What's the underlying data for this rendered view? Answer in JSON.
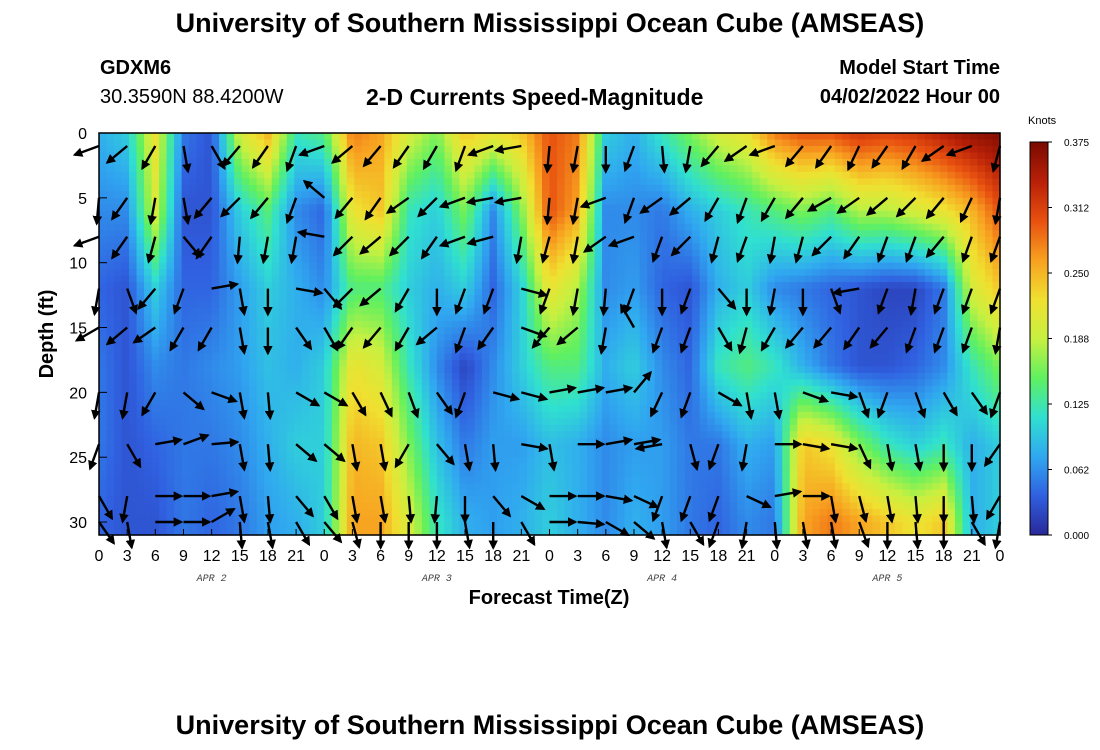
{
  "header": {
    "title": "University of Southern Mississippi Ocean Cube (AMSEAS)",
    "station_id": "GDXM6",
    "coords": "30.3590N  88.4200W",
    "plot_title": "2-D Currents Speed-Magnitude",
    "start_label": "Model Start Time",
    "start_value": "04/02/2022 Hour 00"
  },
  "footer": {
    "title": "University of Southern Mississippi Ocean Cube (AMSEAS)"
  },
  "chart_data": {
    "type": "heatmap",
    "title": "2-D Currents Speed-Magnitude",
    "xlabel": "Forecast Time(Z)",
    "ylabel": "Depth (ft)",
    "xlim": [
      0,
      96
    ],
    "ylim": [
      0,
      31
    ],
    "x_tick_labels": [
      "0",
      "3",
      "6",
      "9",
      "12",
      "15",
      "18",
      "21",
      "0",
      "3",
      "6",
      "9",
      "12",
      "15",
      "18",
      "21",
      "0",
      "3",
      "6",
      "9",
      "12",
      "15",
      "18",
      "21",
      "0",
      "3",
      "6",
      "9",
      "12",
      "15",
      "18",
      "21",
      "0"
    ],
    "y_ticks": [
      0,
      5,
      10,
      15,
      20,
      25,
      30
    ],
    "date_labels": [
      {
        "label": "APR 2",
        "hour": 12
      },
      {
        "label": "APR 3",
        "hour": 36
      },
      {
        "label": "APR 4",
        "hour": 60
      },
      {
        "label": "APR 5",
        "hour": 84
      }
    ],
    "colorbar": {
      "unit": "Knots",
      "ticks": [
        "0.375",
        "0.312",
        "0.250",
        "0.188",
        "0.125",
        "0.062",
        "0.000"
      ],
      "range": [
        0,
        0.375
      ],
      "colors": [
        "#282898",
        "#3060e0",
        "#30a8f0",
        "#30e0d0",
        "#60f060",
        "#c8f040",
        "#f0e030",
        "#f8a020",
        "#e85010",
        "#b82008",
        "#7a0a00"
      ]
    },
    "speed_grid_depths_ft": [
      0,
      6,
      12,
      18,
      24,
      30
    ],
    "speed_grid_hours": [
      0,
      3,
      6,
      9,
      12,
      15,
      18,
      21,
      24,
      27,
      30,
      33,
      36,
      39,
      42,
      45,
      48,
      51,
      54,
      57,
      60,
      63,
      66,
      69,
      72,
      75,
      78,
      81,
      84,
      87,
      90,
      93,
      96
    ],
    "speed_knots": [
      [
        0.08,
        0.1,
        0.22,
        0.05,
        0.03,
        0.2,
        0.25,
        0.12,
        0.14,
        0.28,
        0.26,
        0.2,
        0.16,
        0.24,
        0.22,
        0.24,
        0.3,
        0.28,
        0.1,
        0.08,
        0.12,
        0.16,
        0.2,
        0.22,
        0.28,
        0.3,
        0.3,
        0.32,
        0.31,
        0.32,
        0.34,
        0.36,
        0.37
      ],
      [
        0.06,
        0.06,
        0.2,
        0.03,
        0.03,
        0.1,
        0.14,
        0.06,
        0.04,
        0.22,
        0.24,
        0.12,
        0.1,
        0.16,
        0.06,
        0.16,
        0.3,
        0.26,
        0.06,
        0.06,
        0.05,
        0.08,
        0.1,
        0.12,
        0.14,
        0.16,
        0.14,
        0.18,
        0.18,
        0.2,
        0.22,
        0.25,
        0.3
      ],
      [
        0.04,
        0.03,
        0.1,
        0.04,
        0.04,
        0.07,
        0.1,
        0.08,
        0.06,
        0.14,
        0.14,
        0.1,
        0.08,
        0.1,
        0.04,
        0.1,
        0.22,
        0.18,
        0.06,
        0.07,
        0.04,
        0.03,
        0.08,
        0.1,
        0.06,
        0.05,
        0.04,
        0.03,
        0.02,
        0.02,
        0.05,
        0.2,
        0.24
      ],
      [
        0.05,
        0.03,
        0.06,
        0.05,
        0.06,
        0.07,
        0.09,
        0.08,
        0.1,
        0.22,
        0.2,
        0.12,
        0.06,
        0.02,
        0.06,
        0.1,
        0.14,
        0.14,
        0.08,
        0.1,
        0.06,
        0.04,
        0.12,
        0.14,
        0.12,
        0.08,
        0.05,
        0.03,
        0.03,
        0.04,
        0.06,
        0.12,
        0.16
      ],
      [
        0.05,
        0.03,
        0.04,
        0.05,
        0.05,
        0.06,
        0.08,
        0.1,
        0.1,
        0.25,
        0.24,
        0.16,
        0.09,
        0.05,
        0.07,
        0.07,
        0.09,
        0.08,
        0.06,
        0.07,
        0.07,
        0.05,
        0.05,
        0.08,
        0.07,
        0.24,
        0.22,
        0.16,
        0.12,
        0.1,
        0.12,
        0.08,
        0.1
      ],
      [
        0.04,
        0.03,
        0.03,
        0.05,
        0.04,
        0.05,
        0.07,
        0.08,
        0.1,
        0.26,
        0.26,
        0.2,
        0.12,
        0.08,
        0.07,
        0.08,
        0.1,
        0.08,
        0.06,
        0.08,
        0.07,
        0.05,
        0.04,
        0.06,
        0.05,
        0.26,
        0.28,
        0.26,
        0.24,
        0.22,
        0.24,
        0.08,
        0.1
      ]
    ],
    "arrow_grid_depths_ft": [
      1,
      5,
      8,
      12,
      15,
      20,
      24,
      28,
      30
    ],
    "arrow_grid_hours": [
      0,
      3,
      6,
      9,
      12,
      15,
      18,
      21,
      24,
      27,
      30,
      33,
      36,
      39,
      42,
      45,
      48,
      51,
      54,
      57,
      60,
      63,
      66,
      69,
      72,
      75,
      78,
      81,
      84,
      87,
      90,
      93,
      96
    ],
    "arrow_direction_deg": [
      [
        250,
        230,
        210,
        170,
        150,
        220,
        215,
        200,
        250,
        230,
        220,
        215,
        210,
        200,
        250,
        260,
        185,
        190,
        180,
        200,
        175,
        190,
        220,
        235,
        250,
        220,
        215,
        205,
        215,
        210,
        235,
        250,
        195
      ],
      [
        185,
        215,
        190,
        170,
        220,
        225,
        220,
        200,
        310,
        220,
        215,
        235,
        225,
        250,
        260,
        260,
        185,
        190,
        250,
        200,
        235,
        230,
        210,
        200,
        210,
        220,
        240,
        235,
        230,
        225,
        220,
        205,
        190
      ],
      [
        250,
        215,
        195,
        140,
        215,
        185,
        190,
        190,
        280,
        225,
        230,
        225,
        215,
        250,
        255,
        190,
        195,
        190,
        235,
        250,
        200,
        225,
        195,
        200,
        190,
        195,
        225,
        215,
        200,
        200,
        220,
        200,
        200
      ],
      [
        190,
        160,
        220,
        200,
        80,
        170,
        180,
        100,
        140,
        225,
        230,
        210,
        180,
        200,
        200,
        105,
        200,
        190,
        185,
        200,
        180,
        200,
        140,
        180,
        190,
        180,
        160,
        260,
        200,
        190,
        200,
        200,
        200
      ],
      [
        240,
        230,
        235,
        210,
        210,
        170,
        180,
        145,
        150,
        215,
        220,
        210,
        230,
        200,
        215,
        110,
        220,
        230,
        190,
        330,
        200,
        200,
        150,
        195,
        210,
        220,
        220,
        215,
        220,
        200,
        200,
        200,
        190
      ],
      [
        190,
        190,
        210,
        130,
        110,
        170,
        175,
        120,
        120,
        150,
        155,
        160,
        145,
        200,
        105,
        105,
        80,
        80,
        80,
        40,
        205,
        200,
        120,
        170,
        170,
        110,
        100,
        160,
        200,
        160,
        150,
        145,
        200
      ],
      [
        200,
        150,
        80,
        70,
        85,
        170,
        175,
        130,
        130,
        170,
        170,
        210,
        140,
        170,
        175,
        100,
        170,
        90,
        80,
        80,
        260,
        165,
        200,
        190,
        90,
        100,
        100,
        155,
        170,
        170,
        180,
        180,
        215
      ],
      [
        150,
        190,
        90,
        90,
        80,
        170,
        175,
        140,
        150,
        170,
        170,
        175,
        185,
        180,
        140,
        120,
        90,
        90,
        100,
        115,
        200,
        200,
        200,
        115,
        80,
        90,
        170,
        165,
        170,
        175,
        180,
        175,
        210
      ],
      [
        145,
        170,
        90,
        90,
        60,
        175,
        170,
        150,
        140,
        165,
        180,
        180,
        180,
        170,
        180,
        150,
        90,
        95,
        120,
        130,
        170,
        150,
        200,
        190,
        175,
        170,
        170,
        160,
        180,
        175,
        180,
        150,
        190
      ]
    ]
  }
}
